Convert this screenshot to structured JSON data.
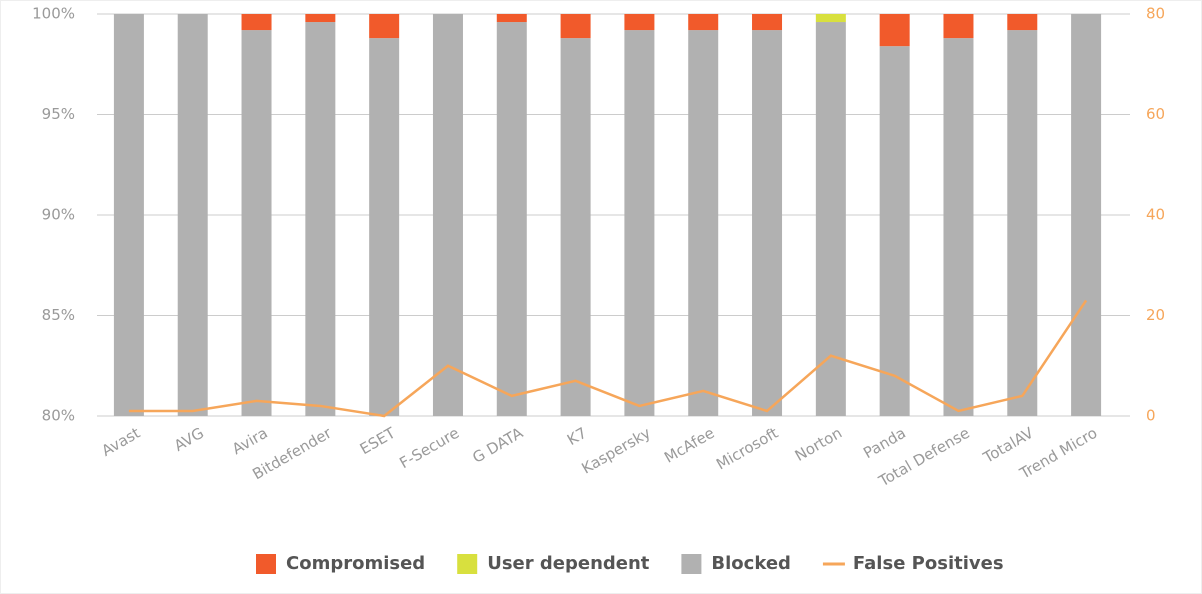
{
  "chart_data": {
    "type": "bar",
    "stacked": true,
    "categories": [
      "Avast",
      "AVG",
      "Avira",
      "Bitdefender",
      "ESET",
      "F-Secure",
      "G DATA",
      "K7",
      "Kaspersky",
      "McAfee",
      "Microsoft",
      "Norton",
      "Panda",
      "Total Defense",
      "TotalAV",
      "Trend Micro"
    ],
    "series": [
      {
        "name": "Compromised",
        "color": "#f15a2b",
        "values": [
          0,
          0,
          0.8,
          0.4,
          1.2,
          0,
          0.4,
          1.2,
          0.8,
          0.8,
          0.8,
          0,
          1.6,
          1.2,
          0.8,
          0
        ]
      },
      {
        "name": "User dependent",
        "color": "#d8e03e",
        "values": [
          0,
          0,
          0,
          0,
          0,
          0,
          0,
          0,
          0,
          0,
          0,
          0.4,
          0,
          0,
          0,
          0
        ]
      },
      {
        "name": "Blocked",
        "color": "#b1b1b1",
        "values": [
          100,
          100,
          99.2,
          99.6,
          98.8,
          100,
          99.6,
          98.8,
          99.2,
          99.2,
          99.2,
          99.6,
          98.4,
          98.8,
          99.2,
          100
        ]
      },
      {
        "name": "False Positives",
        "type": "line",
        "axis": "y2",
        "color": "#f6a65a",
        "values": [
          1,
          1,
          3,
          2,
          0,
          10,
          4,
          7,
          2,
          5,
          1,
          12,
          8,
          1,
          4,
          23
        ]
      }
    ],
    "ylim": [
      80,
      100
    ],
    "yticks": [
      {
        "value": 80,
        "label": "80%"
      },
      {
        "value": 85,
        "label": "85%"
      },
      {
        "value": 90,
        "label": "90%"
      },
      {
        "value": 95,
        "label": "95%"
      },
      {
        "value": 100,
        "label": "100%"
      }
    ],
    "y2lim": [
      0,
      80
    ],
    "y2ticks": [
      0,
      20,
      40,
      60,
      80
    ],
    "grid": true,
    "legend": "bottom"
  }
}
